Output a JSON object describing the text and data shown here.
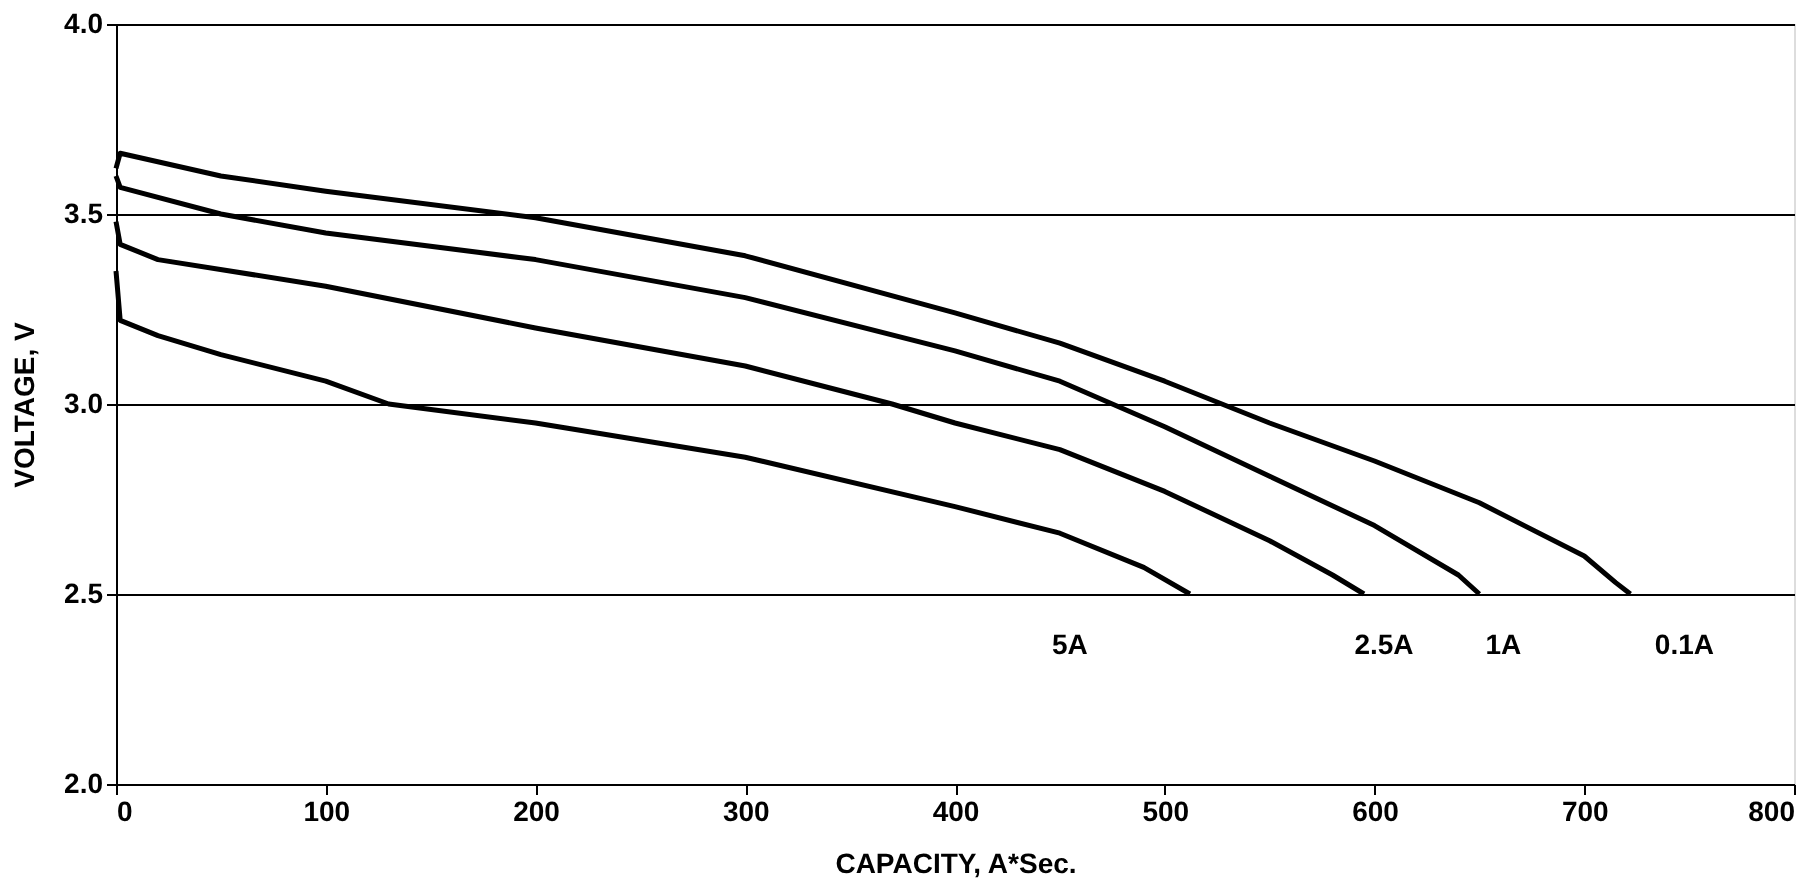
{
  "chart_data": {
    "type": "line",
    "xlabel": "CAPACITY,  A*Sec.",
    "ylabel": "VOLTAGE, V",
    "xlim": [
      0,
      800
    ],
    "xticks": [
      0,
      100,
      200,
      300,
      400,
      500,
      600,
      700,
      800
    ],
    "ylim": [
      2.0,
      4.0
    ],
    "yticks": [
      {
        "value": 2.0,
        "label": "2.0"
      },
      {
        "value": 2.5,
        "label": "2.5"
      },
      {
        "value": 3.0,
        "label": "3.0"
      },
      {
        "value": 3.5,
        "label": "3.5"
      },
      {
        "value": 4.0,
        "label": "4.0"
      }
    ],
    "grid": "y",
    "marker": "none",
    "line_style": "solid",
    "series": [
      {
        "name": "0.1A",
        "color": "#000000",
        "x": [
          0,
          2,
          50,
          100,
          200,
          300,
          400,
          450,
          500,
          550,
          600,
          650,
          700,
          715,
          722
        ],
        "values": [
          3.62,
          3.66,
          3.6,
          3.56,
          3.49,
          3.39,
          3.24,
          3.16,
          3.06,
          2.95,
          2.85,
          2.74,
          2.6,
          2.53,
          2.5
        ]
      },
      {
        "name": "1A",
        "color": "#000000",
        "x": [
          0,
          2,
          50,
          100,
          200,
          300,
          400,
          450,
          500,
          550,
          600,
          640,
          650
        ],
        "values": [
          3.6,
          3.57,
          3.5,
          3.45,
          3.38,
          3.28,
          3.14,
          3.06,
          2.94,
          2.81,
          2.68,
          2.55,
          2.5
        ]
      },
      {
        "name": "2.5A",
        "color": "#000000",
        "x": [
          0,
          2,
          20,
          100,
          200,
          300,
          370,
          400,
          450,
          500,
          550,
          580,
          595
        ],
        "values": [
          3.48,
          3.42,
          3.38,
          3.31,
          3.2,
          3.1,
          3.0,
          2.95,
          2.88,
          2.77,
          2.64,
          2.55,
          2.5
        ]
      },
      {
        "name": "5A",
        "color": "#000000",
        "x": [
          0,
          2,
          20,
          50,
          100,
          130,
          200,
          300,
          400,
          450,
          490,
          512
        ],
        "values": [
          3.35,
          3.22,
          3.18,
          3.13,
          3.06,
          3.0,
          2.95,
          2.86,
          2.73,
          2.66,
          2.57,
          2.5
        ]
      }
    ]
  }
}
